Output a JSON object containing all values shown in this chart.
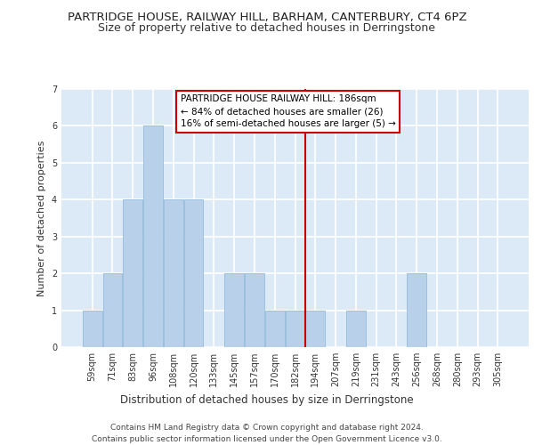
{
  "title": "PARTRIDGE HOUSE, RAILWAY HILL, BARHAM, CANTERBURY, CT4 6PZ",
  "subtitle": "Size of property relative to detached houses in Derringstone",
  "xlabel": "Distribution of detached houses by size in Derringstone",
  "ylabel": "Number of detached properties",
  "bar_labels": [
    "59sqm",
    "71sqm",
    "83sqm",
    "96sqm",
    "108sqm",
    "120sqm",
    "133sqm",
    "145sqm",
    "157sqm",
    "170sqm",
    "182sqm",
    "194sqm",
    "207sqm",
    "219sqm",
    "231sqm",
    "243sqm",
    "256sqm",
    "268sqm",
    "280sqm",
    "293sqm",
    "305sqm"
  ],
  "bar_values": [
    1,
    2,
    4,
    6,
    4,
    4,
    0,
    2,
    2,
    1,
    1,
    1,
    0,
    1,
    0,
    0,
    2,
    0,
    0,
    0,
    0
  ],
  "bar_color": "#b8d0ea",
  "bar_edge_color": "#8ab4d8",
  "background_color": "#dce9f7",
  "grid_color": "#ffffff",
  "red_line_x": 10.5,
  "red_line_color": "#cc0000",
  "annotation_text": "PARTRIDGE HOUSE RAILWAY HILL: 186sqm\n← 84% of detached houses are smaller (26)\n16% of semi-detached houses are larger (5) →",
  "annotation_box_color": "#ffffff",
  "annotation_box_edge": "#cc0000",
  "footer_line1": "Contains HM Land Registry data © Crown copyright and database right 2024.",
  "footer_line2": "Contains public sector information licensed under the Open Government Licence v3.0.",
  "ylim": [
    0,
    7
  ],
  "yticks": [
    0,
    1,
    2,
    3,
    4,
    5,
    6,
    7
  ],
  "title_fontsize": 9.5,
  "subtitle_fontsize": 9,
  "xlabel_fontsize": 8.5,
  "ylabel_fontsize": 8,
  "tick_fontsize": 7,
  "annotation_fontsize": 7.5,
  "footer_fontsize": 6.5
}
